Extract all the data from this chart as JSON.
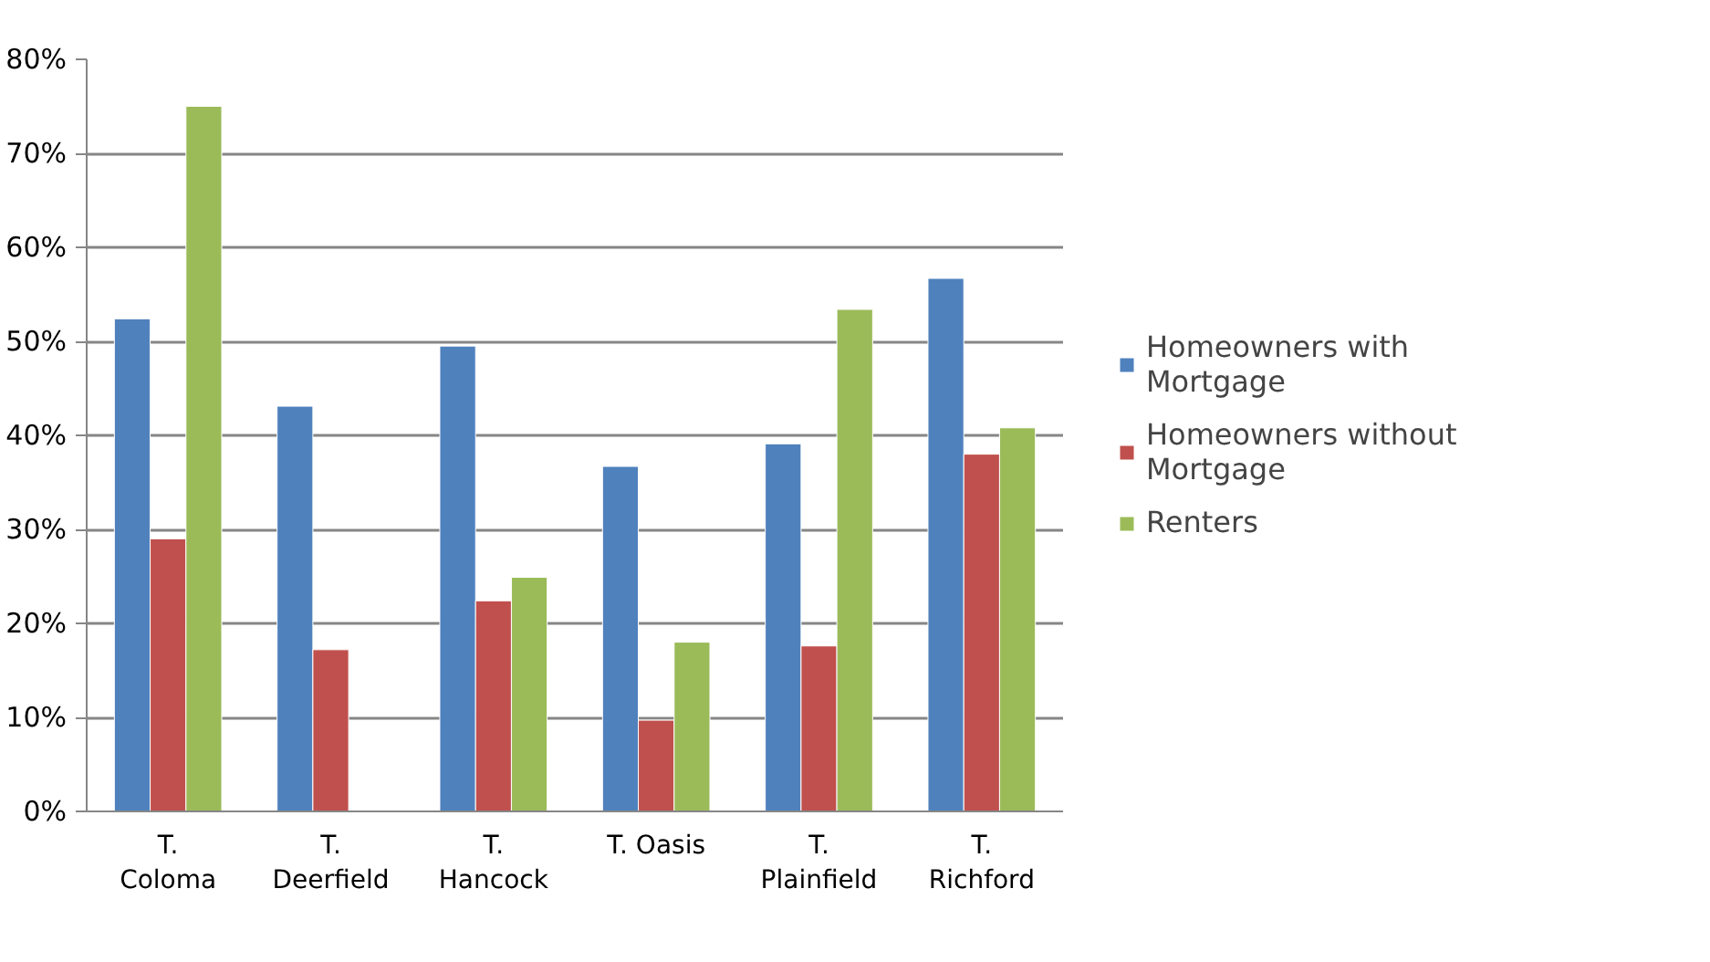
{
  "chart_data": {
    "type": "bar",
    "categories": [
      "T. Coloma",
      "T. Deerfield",
      "T. Hancock",
      "T. Oasis",
      "T. Plainfield",
      "T. Richford"
    ],
    "series": [
      {
        "name": "Homeowners with Mortgage",
        "color": "#4f81bd",
        "values": [
          52.4,
          43.1,
          49.5,
          36.7,
          39.1,
          56.7
        ]
      },
      {
        "name": "Homeowners without Mortgage",
        "color": "#c0504d",
        "values": [
          29.0,
          17.2,
          22.4,
          9.7,
          17.6,
          38.0
        ]
      },
      {
        "name": "Renters",
        "color": "#9bbb59",
        "values": [
          75.0,
          null,
          24.9,
          18.0,
          53.4,
          40.8
        ]
      }
    ],
    "ylim": [
      0,
      80
    ],
    "yticks": [
      {
        "value": 0,
        "label": "0%"
      },
      {
        "value": 10,
        "label": "10%"
      },
      {
        "value": 20,
        "label": "20%"
      },
      {
        "value": 30,
        "label": "30%"
      },
      {
        "value": 40,
        "label": "40%"
      },
      {
        "value": 50,
        "label": "50%"
      },
      {
        "value": 60,
        "label": "60%"
      },
      {
        "value": 70,
        "label": "70%"
      },
      {
        "value": 80,
        "label": "80%"
      }
    ],
    "grid": "y",
    "legend": "right"
  }
}
